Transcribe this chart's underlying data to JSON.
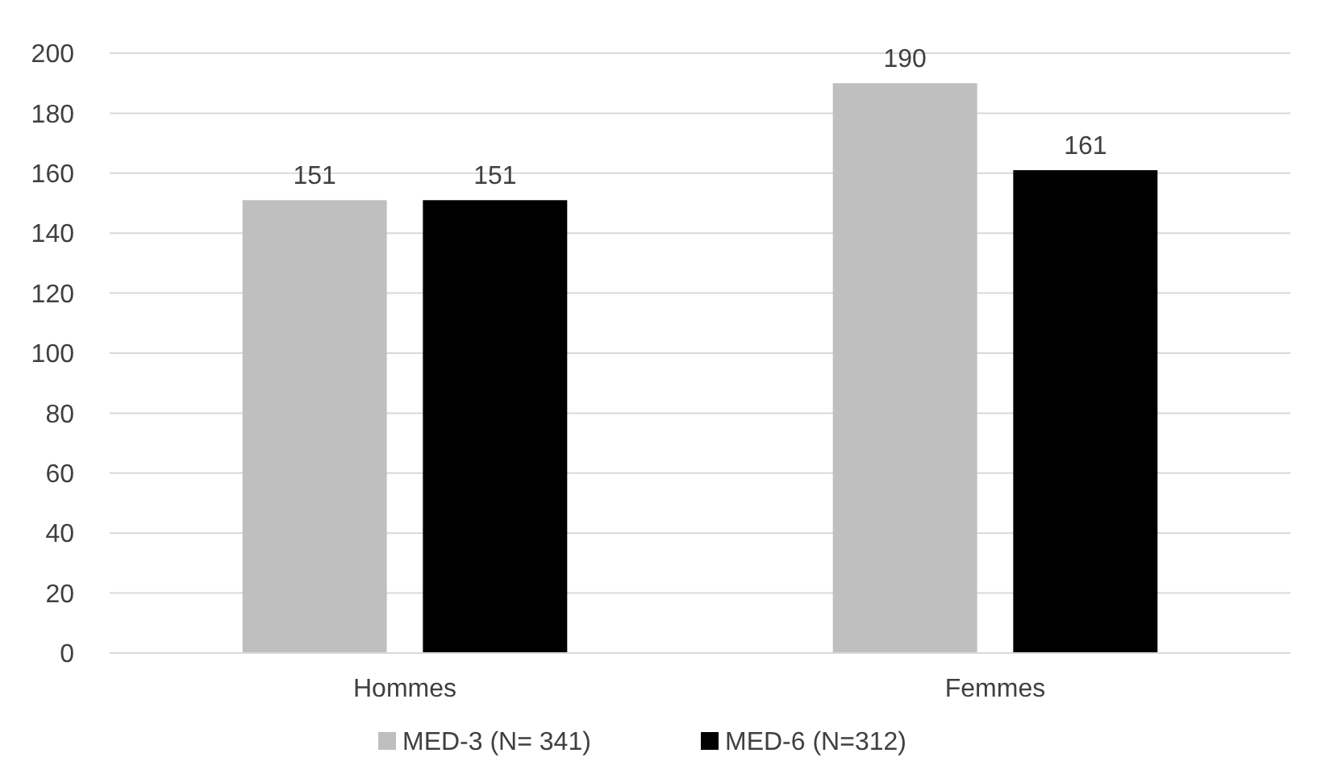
{
  "chart_data": {
    "type": "bar",
    "categories": [
      "Hommes",
      "Femmes"
    ],
    "series": [
      {
        "name": "MED-3 (N= 341)",
        "color": "#bfbfbf",
        "values": [
          151,
          190
        ]
      },
      {
        "name": "MED-6 (N=312)",
        "color": "#000000",
        "values": [
          151,
          161
        ]
      }
    ],
    "ylim": [
      0,
      200
    ],
    "yticks": [
      0,
      20,
      40,
      60,
      80,
      100,
      120,
      140,
      160,
      180,
      200
    ],
    "grid": "y",
    "legend": "bottom",
    "data_labels": true
  }
}
